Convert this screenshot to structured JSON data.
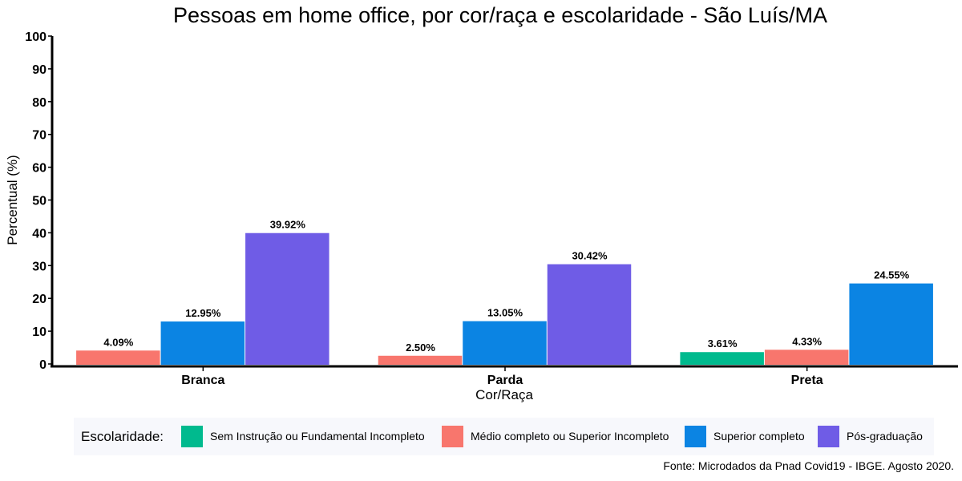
{
  "chart_data": {
    "type": "bar",
    "title": "Pessoas em home office, por cor/raça e escolaridade - São Luís/MA",
    "xlabel": "Cor/Raça",
    "ylabel": "Percentual (%)",
    "ylim": [
      0,
      100
    ],
    "yticks": [
      "0",
      "10",
      "20",
      "30",
      "40",
      "50",
      "60",
      "70",
      "80",
      "90",
      "100"
    ],
    "categories": [
      "Branca",
      "Parda",
      "Preta"
    ],
    "series": [
      {
        "name": "Sem Instrução ou Fundamental Incompleto",
        "color": "#00BA8E",
        "values": [
          null,
          null,
          3.61
        ],
        "labels": [
          "",
          "",
          "3.61%"
        ]
      },
      {
        "name": "Médio completo ou Superior Incompleto",
        "color": "#F8766D",
        "values": [
          4.09,
          2.5,
          4.33
        ],
        "labels": [
          "4.09%",
          "2.50%",
          "4.33%"
        ]
      },
      {
        "name": "Superior completo",
        "color": "#0B84E3",
        "values": [
          12.95,
          13.05,
          24.55
        ],
        "labels": [
          "12.95%",
          "13.05%",
          "24.55%"
        ]
      },
      {
        "name": "Pós-graduação",
        "color": "#6F5CE6",
        "values": [
          39.92,
          30.42,
          null
        ],
        "labels": [
          "39.92%",
          "30.42%",
          ""
        ]
      }
    ],
    "legend_title": "Escolaridade:",
    "legend_position": "bottom",
    "grid": false
  },
  "caption": "Fonte: Microdados da Pnad Covid19 - IBGE. Agosto 2020."
}
